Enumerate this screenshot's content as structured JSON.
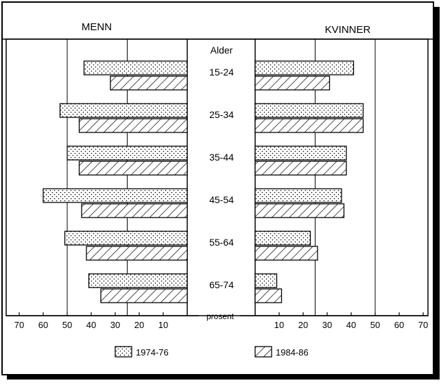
{
  "chart_data": {
    "type": "bar",
    "orientation": "horizontal",
    "layout": "population-pyramid",
    "panels": [
      {
        "name": "MENN",
        "side": "left"
      },
      {
        "name": "KVINNER",
        "side": "right"
      }
    ],
    "category_header": "Alder",
    "categories": [
      "15-24",
      "25-34",
      "35-44",
      "45-54",
      "55-64",
      "65-74"
    ],
    "series": [
      {
        "name": "1974-76",
        "pattern": "dotted",
        "men": [
          43,
          53,
          50,
          60,
          51,
          41
        ],
        "women": [
          41,
          45,
          38,
          36,
          23,
          9
        ]
      },
      {
        "name": "1984-86",
        "pattern": "diagonal-hatch",
        "men": [
          32,
          45,
          45,
          44,
          42,
          36
        ],
        "women": [
          31,
          45,
          38,
          37,
          26,
          11
        ]
      }
    ],
    "xlabel": "prosent",
    "x_ticks_left": [
      "70",
      "60",
      "50",
      "40",
      "30",
      "20",
      "10"
    ],
    "x_ticks_right": [
      "10",
      "20",
      "30",
      "40",
      "50",
      "60",
      "70"
    ],
    "xlim": [
      0,
      70
    ],
    "grid_values": [
      25,
      50
    ],
    "legend_position": "bottom"
  }
}
